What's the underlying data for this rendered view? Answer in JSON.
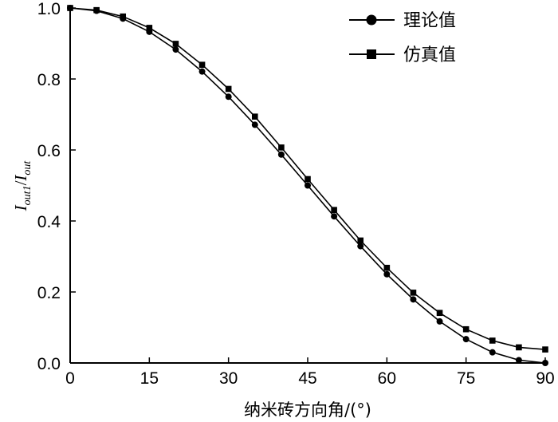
{
  "chart_data": {
    "type": "line",
    "xlabel": "纳米砖方向角/(°)",
    "ylabel": {
      "main": "I",
      "sub": "out1",
      "sep": "/",
      "main2": "I",
      "sub2": "out"
    },
    "xlim": [
      0,
      90
    ],
    "ylim": [
      0,
      1.0
    ],
    "xticks": [
      0,
      15,
      30,
      45,
      60,
      75,
      90
    ],
    "yticks": [
      0,
      0.2,
      0.4,
      0.6,
      0.8,
      1.0
    ],
    "xtick_labels": [
      "0",
      "15",
      "30",
      "45",
      "60",
      "75",
      "90"
    ],
    "ytick_labels": [
      "0.0",
      "0.2",
      "0.4",
      "0.6",
      "0.8",
      "1.0"
    ],
    "grid": false,
    "legend_position": "top-right",
    "x": [
      0,
      5,
      10,
      15,
      20,
      25,
      30,
      35,
      40,
      45,
      50,
      55,
      60,
      65,
      70,
      75,
      80,
      85,
      90
    ],
    "series": [
      {
        "name": "理论值",
        "marker": "circle",
        "color": "#000000",
        "values": [
          1.0,
          0.992,
          0.97,
          0.933,
          0.883,
          0.821,
          0.75,
          0.671,
          0.587,
          0.5,
          0.413,
          0.329,
          0.25,
          0.179,
          0.117,
          0.067,
          0.03,
          0.008,
          0.0
        ]
      },
      {
        "name": "仿真值",
        "marker": "square",
        "color": "#000000",
        "values": [
          1.0,
          0.994,
          0.976,
          0.944,
          0.899,
          0.84,
          0.772,
          0.694,
          0.607,
          0.518,
          0.431,
          0.345,
          0.268,
          0.198,
          0.141,
          0.095,
          0.063,
          0.044,
          0.038
        ]
      }
    ]
  }
}
